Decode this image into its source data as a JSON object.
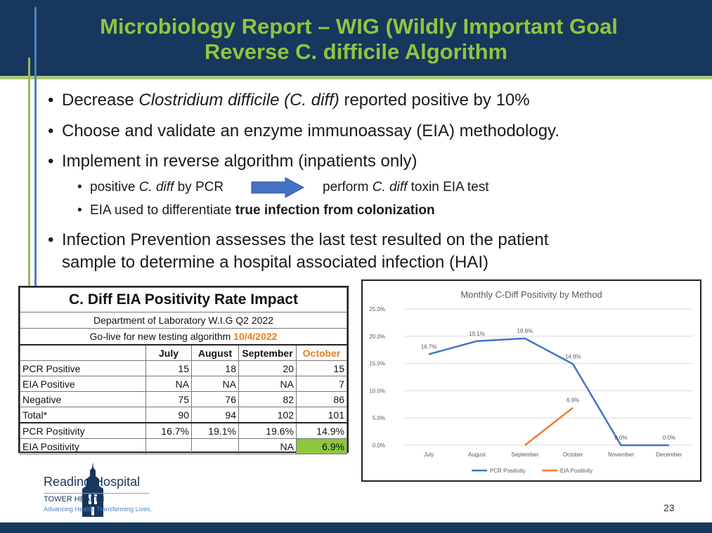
{
  "slide": {
    "title_line1": "Microbiology Report – WIG (Wildly Important Goal",
    "title_line2": "Reverse C. difficile Algorithm",
    "page_number": "23"
  },
  "bullets": {
    "b1": {
      "pre": "Decrease ",
      "italic": "Clostridium difficile (C. diff)",
      "post": " reported positive by 10%"
    },
    "b2": "Choose and validate an enzyme immunoassay (EIA) methodology.",
    "b3": "Implement in reverse algorithm (inpatients only)",
    "sub1": {
      "pre": "positive ",
      "italic1": "C. diff",
      "mid": " by PCR",
      "pre2": "perform ",
      "italic2": "C. diff",
      "post": " toxin EIA test"
    },
    "sub2": {
      "pre": "EIA used to differentiate ",
      "bold": "true infection from colonization"
    },
    "b4_line1": "Infection Prevention assesses the last test resulted on the patient",
    "b4_line2": "sample to determine a hospital associated infection (HAI)"
  },
  "table": {
    "title": "C. Diff EIA Positivity Rate Impact",
    "subtitle": "Department of Laboratory W.I.G Q2 2022",
    "golive_prefix": "Go-live for new testing algorithm ",
    "golive_date": "10/4/2022",
    "columns": [
      "July",
      "August",
      "September",
      "October"
    ],
    "rows": [
      {
        "label": "PCR Positive",
        "values": [
          "15",
          "18",
          "20",
          "15"
        ]
      },
      {
        "label": "EIA Positive",
        "values": [
          "NA",
          "NA",
          "NA",
          "7"
        ]
      },
      {
        "label": "Negative",
        "values": [
          "75",
          "76",
          "82",
          "86"
        ]
      },
      {
        "label": "Total*",
        "values": [
          "90",
          "94",
          "102",
          "101"
        ]
      },
      {
        "label": "PCR Positivity",
        "values": [
          "16.7%",
          "19.1%",
          "19.6%",
          "14.9%"
        ]
      },
      {
        "label": "EIA Positivity",
        "values": [
          "",
          "",
          "NA",
          "6.9%"
        ]
      }
    ]
  },
  "chart_data": {
    "type": "line",
    "title": "Monthly C-Diff Positivity by Method",
    "categories": [
      "July",
      "August",
      "September",
      "October",
      "November",
      "December"
    ],
    "y_ticks": [
      "0.0%",
      "5.0%",
      "10.0%",
      "15.0%",
      "20.0%",
      "25.0%"
    ],
    "ylim": [
      0,
      25
    ],
    "grid": true,
    "legend_position": "bottom",
    "series": [
      {
        "name": "PCR Positivity",
        "color": "#4472c4",
        "values": [
          16.7,
          19.1,
          19.6,
          14.9,
          0.0,
          0.0
        ],
        "labels": [
          "16.7%",
          "19.1%",
          "19.6%",
          "14.9%",
          "0.0%",
          "0.0%"
        ]
      },
      {
        "name": "EIA Positivity",
        "color": "#ed7d31",
        "values": [
          null,
          null,
          0.0,
          6.9,
          null,
          null
        ],
        "labels": [
          "",
          "",
          "",
          "6.9%",
          "",
          ""
        ]
      }
    ]
  },
  "logo": {
    "name": "Reading Hospital",
    "sub": "TOWER HEALTH",
    "tagline": "Advancing Health. Transforming Lives."
  },
  "colors": {
    "header": "#17375e",
    "title": "#8dc63f",
    "arrow": "#4472c4"
  },
  "icons": {
    "arrow": "right-arrow-icon",
    "logo": "tower-logo-icon"
  }
}
